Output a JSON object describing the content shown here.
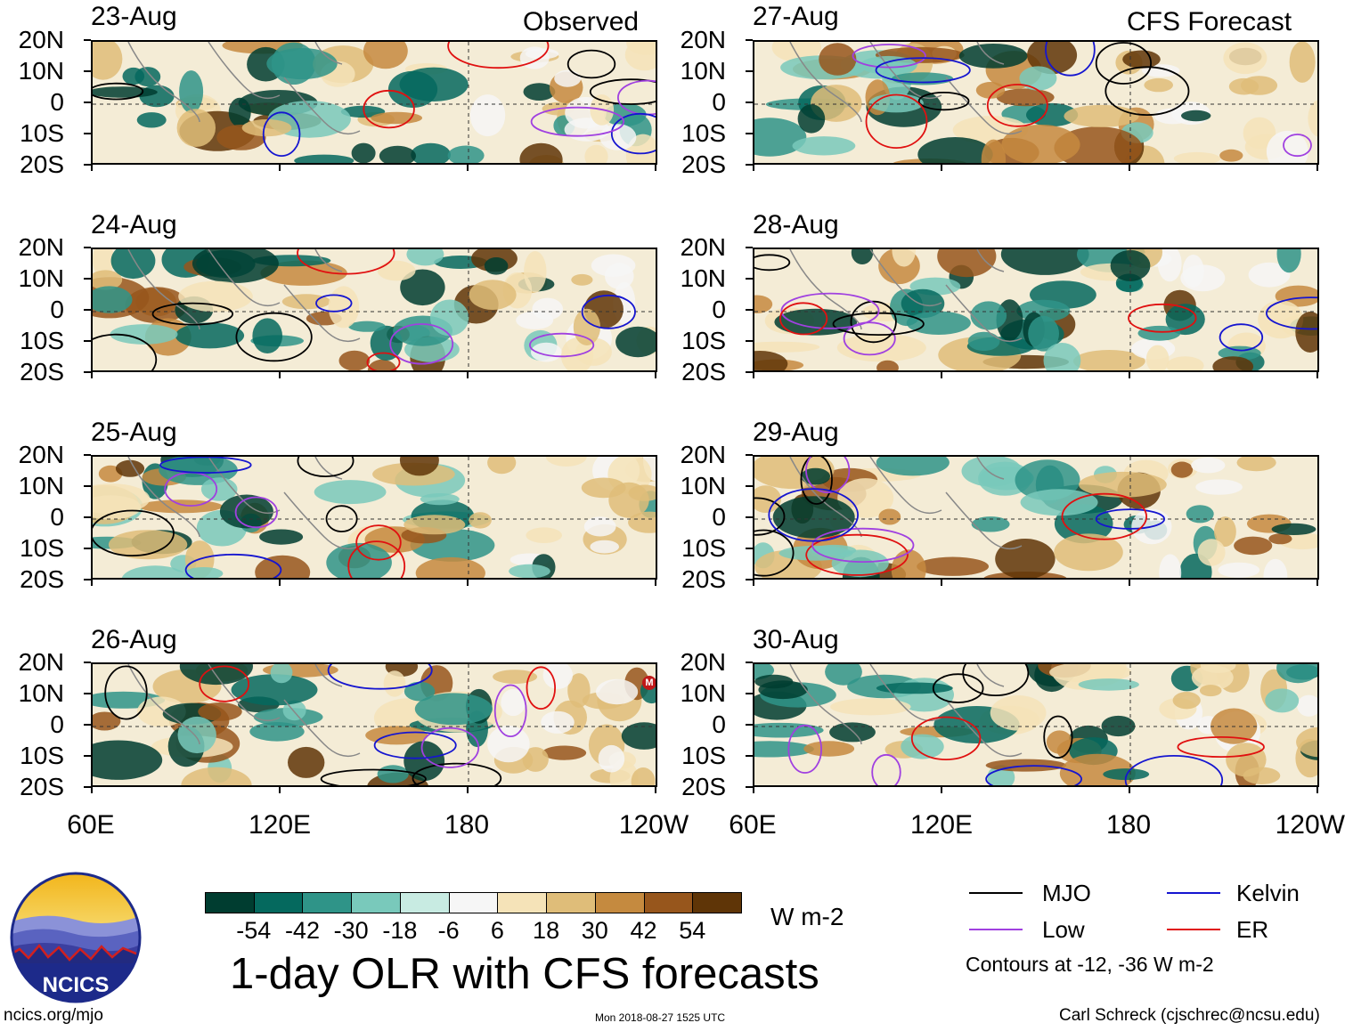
{
  "columns": {
    "left_title": "Observed",
    "right_title": "CFS Forecast"
  },
  "observed_dates": [
    "23-Aug",
    "24-Aug",
    "25-Aug",
    "26-Aug"
  ],
  "forecast_dates": [
    "27-Aug",
    "28-Aug",
    "29-Aug",
    "30-Aug"
  ],
  "lat_labels": [
    "20N",
    "10N",
    "0",
    "10S",
    "20S"
  ],
  "lon_labels": [
    "60E",
    "120E",
    "180",
    "120W"
  ],
  "colorbar": {
    "unit": "W m-2",
    "labels": [
      "-54",
      "-42",
      "-30",
      "-18",
      "-6",
      "6",
      "18",
      "30",
      "42",
      "54"
    ],
    "colors": [
      "#003d30",
      "#05695e",
      "#2f9488",
      "#79c9bb",
      "#c8ebe2",
      "#f6f6f6",
      "#f5e3b8",
      "#dfbd79",
      "#c58a3f",
      "#97561c",
      "#5f3507"
    ]
  },
  "legend": {
    "items": [
      {
        "label": "MJO",
        "color": "#000000"
      },
      {
        "label": "Kelvin",
        "color": "#1515d0"
      },
      {
        "label": "Low",
        "color": "#a040e0"
      },
      {
        "label": "ER",
        "color": "#e01010"
      }
    ],
    "note": "Contours at -12, -36 W m-2"
  },
  "title": "1-day OLR with CFS forecasts",
  "logo_text": "NCICS",
  "footer": {
    "website": "ncics.org/mjo",
    "timestamp": "Mon 2018-08-27 1525 UTC",
    "credit": "Carl Schreck (cjschrec@ncsu.edu)"
  },
  "marker_label": "M"
}
